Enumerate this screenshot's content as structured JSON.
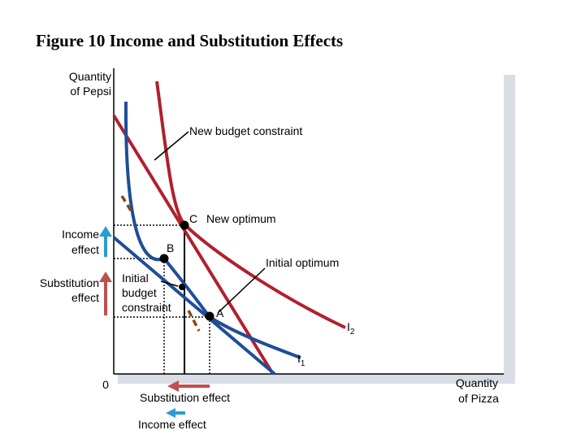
{
  "title": "Figure 10 Income and Substitution Effects",
  "axes": {
    "y_label_line1": "Quantity",
    "y_label_line2": "of Pepsi",
    "x_label_line1": "Quantity",
    "x_label_line2": "of Pizza",
    "origin": "0"
  },
  "labels": {
    "new_budget": "New budget constraint",
    "point_c": "C",
    "new_optimum": "New optimum",
    "point_b": "B",
    "initial_optimum": "Initial optimum",
    "initial_budget_1": "Initial",
    "initial_budget_2": "budget",
    "initial_budget_3": "constraint",
    "point_a": "A",
    "i2_main": "I",
    "i2_sub": "2",
    "i1_main": "I",
    "i1_sub": "1"
  },
  "side_labels": {
    "income_1": "Income",
    "income_2": "effect",
    "substitution_1": "Substitution",
    "substitution_2": "effect"
  },
  "bottom_labels": {
    "substitution_effect": "Substitution effect",
    "income_effect": "Income effect"
  },
  "colors": {
    "red_curve": "#b0202e",
    "blue_curve": "#1f4e96",
    "arrow_red": "#c0504d",
    "arrow_blue": "#2e9bd0",
    "dashed_brown": "#8b4513",
    "shadow": "#d9dde6"
  }
}
